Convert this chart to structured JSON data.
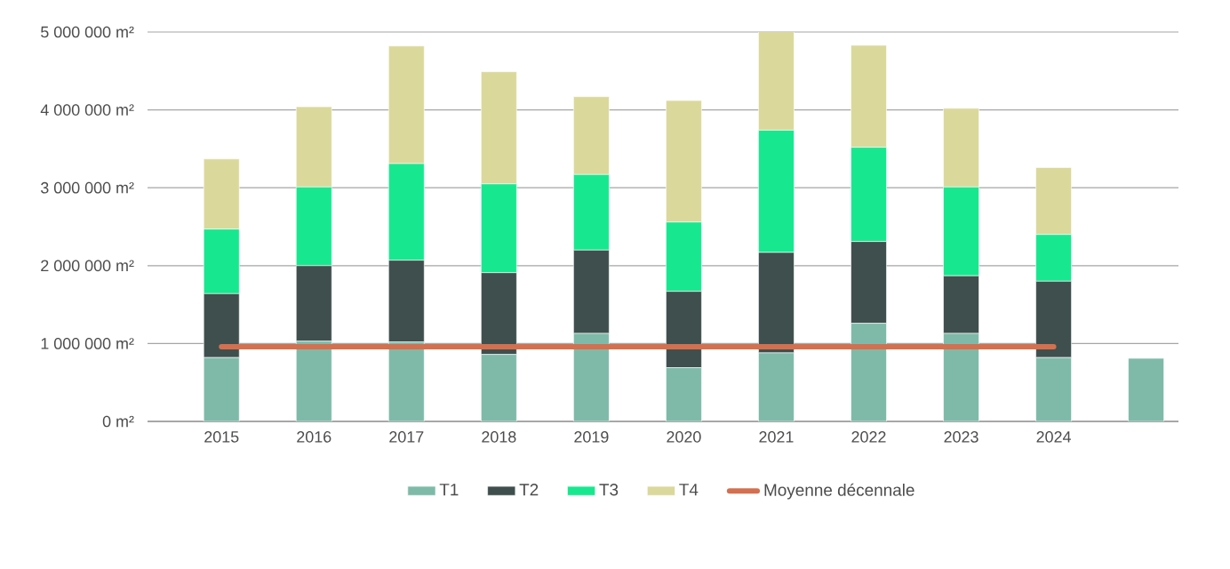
{
  "chart_data": {
    "type": "bar",
    "stacked": true,
    "categories": [
      "2015",
      "2016",
      "2017",
      "2018",
      "2019",
      "2020",
      "2021",
      "2022",
      "2023",
      "2024",
      null
    ],
    "series": [
      {
        "name": "T1",
        "color": "#7fbaa9",
        "values": [
          820000,
          1030000,
          1020000,
          860000,
          1130000,
          690000,
          880000,
          1260000,
          1130000,
          820000,
          810000
        ]
      },
      {
        "name": "T2",
        "color": "#3f4f4d",
        "values": [
          820000,
          970000,
          1050000,
          1050000,
          1070000,
          980000,
          1290000,
          1050000,
          740000,
          980000,
          null
        ]
      },
      {
        "name": "T3",
        "color": "#17e88f",
        "values": [
          830000,
          1010000,
          1240000,
          1140000,
          970000,
          890000,
          1570000,
          1210000,
          1140000,
          600000,
          null
        ]
      },
      {
        "name": "T4",
        "color": "#dbd89c",
        "values": [
          900000,
          1030000,
          1510000,
          1440000,
          1000000,
          1560000,
          1280000,
          1310000,
          1010000,
          860000,
          null
        ]
      },
      {
        "name": "Moyenne décennale",
        "type": "line",
        "color": "#d4704f",
        "values": [
          960000,
          960000,
          960000,
          960000,
          960000,
          960000,
          960000,
          960000,
          960000,
          960000,
          null
        ]
      }
    ],
    "ylim": [
      0,
      5000000
    ],
    "yticks": [
      {
        "value": 0,
        "label": "0 m²"
      },
      {
        "value": 1000000,
        "label": "1 000 000 m²"
      },
      {
        "value": 2000000,
        "label": "2 000 000 m²"
      },
      {
        "value": 3000000,
        "label": "3 000 000 m²"
      },
      {
        "value": 4000000,
        "label": "4 000 000 m²"
      },
      {
        "value": 5000000,
        "label": "5 000 000 m²"
      }
    ],
    "grid": "y",
    "legend": "bottom",
    "marker": "none"
  }
}
